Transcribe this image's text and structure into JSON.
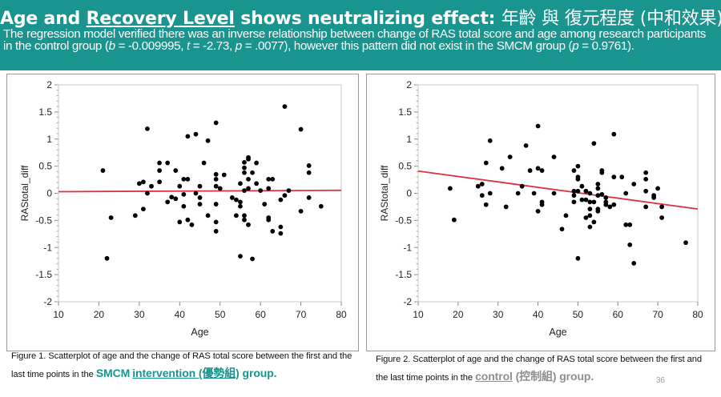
{
  "header": {
    "title_part1": "Age and ",
    "title_underlined": "Recovery Level",
    "title_part2": " shows neutralizing effect: ",
    "title_cjk": "年齡 與 復元程度 (中和效果)",
    "subtitle_1": "The regression model verified there was an inverse relationship between change of RAS total score and age among research participants in the control group (",
    "subtitle_b": "b",
    "subtitle_2": " = -0.009995, ",
    "subtitle_t": "t",
    "subtitle_3": " = -2.73, ",
    "subtitle_p": "p",
    "subtitle_4": " = .0077), however this pattern did not exist in the SMCM group (",
    "subtitle_p2": "p",
    "subtitle_5": " = 0.9761)."
  },
  "colors": {
    "header_bg": "#1a948f",
    "regression_line": "#e0303f",
    "point": "#000000",
    "highlight_teal": "#1a948f",
    "highlight_gray": "#8f8f8f"
  },
  "captions": {
    "fig1_text": "Figure 1. Scatterplot of age and the change of RAS total score between the first and the last time points in the ",
    "fig1_hl1": "SMCM",
    "fig1_hl2": "intervention (優勢組)",
    "fig1_hl3": " group.",
    "fig2_text": "Figure 2. Scatterplot of age and the change of RAS total score between the first and the last time points in the ",
    "fig2_hl1": "control",
    "fig2_hl2": " (控制組) group."
  },
  "page_number": "36",
  "chart_data": [
    {
      "type": "scatter",
      "title": "",
      "group": "SMCM intervention",
      "xlabel": "Age",
      "ylabel": "RAStotal_diff",
      "xlim": [
        10,
        80
      ],
      "ylim": [
        -2,
        2
      ],
      "x_ticks": [
        "10",
        "20",
        "30",
        "40",
        "50",
        "60",
        "70",
        "80"
      ],
      "y_ticks": [
        "2",
        "1.5",
        "1",
        "0.5",
        "0",
        "-0.5",
        "-1",
        "-1.5",
        "-2"
      ],
      "grid": false,
      "fit_line": {
        "x": [
          10,
          80
        ],
        "y": [
          0.03,
          0.055
        ]
      },
      "points": [
        [
          21,
          0.42
        ],
        [
          22,
          -1.2
        ],
        [
          23,
          -0.45
        ],
        [
          29,
          -0.41
        ],
        [
          30,
          0.18
        ],
        [
          31,
          0.21
        ],
        [
          31,
          -0.29
        ],
        [
          32,
          1.19
        ],
        [
          32,
          0.0
        ],
        [
          33,
          0.13
        ],
        [
          35,
          0.56
        ],
        [
          35,
          0.42
        ],
        [
          35,
          0.21
        ],
        [
          37,
          0.56
        ],
        [
          37,
          -0.16
        ],
        [
          38,
          -0.07
        ],
        [
          39,
          0.42
        ],
        [
          39,
          -0.1
        ],
        [
          40,
          0.13
        ],
        [
          40,
          -0.53
        ],
        [
          41,
          0.26
        ],
        [
          41,
          -0.02
        ],
        [
          41,
          -0.24
        ],
        [
          42,
          1.05
        ],
        [
          42,
          0.26
        ],
        [
          42,
          -0.49
        ],
        [
          43,
          -0.58
        ],
        [
          44,
          1.09
        ],
        [
          44,
          0.0
        ],
        [
          45,
          0.13
        ],
        [
          45,
          -0.08
        ],
        [
          45,
          -0.2
        ],
        [
          46,
          0.56
        ],
        [
          47,
          0.97
        ],
        [
          47,
          -0.41
        ],
        [
          49,
          1.3
        ],
        [
          49,
          0.35
        ],
        [
          49,
          0.26
        ],
        [
          49,
          0.13
        ],
        [
          49,
          -0.2
        ],
        [
          49,
          -0.53
        ],
        [
          49,
          -0.7
        ],
        [
          50,
          0.09
        ],
        [
          51,
          0.34
        ],
        [
          53,
          -0.08
        ],
        [
          54,
          -0.12
        ],
        [
          54,
          -0.41
        ],
        [
          55,
          0.18
        ],
        [
          55,
          -0.16
        ],
        [
          55,
          -0.24
        ],
        [
          55,
          -1.16
        ],
        [
          56,
          0.57
        ],
        [
          56,
          0.47
        ],
        [
          56,
          0.38
        ],
        [
          56,
          0.05
        ],
        [
          56,
          -0.41
        ],
        [
          56,
          -0.49
        ],
        [
          57,
          0.66
        ],
        [
          57,
          0.63
        ],
        [
          57,
          0.26
        ],
        [
          57,
          0.09
        ],
        [
          57,
          -0.58
        ],
        [
          58,
          0.38
        ],
        [
          58,
          -1.21
        ],
        [
          59,
          0.56
        ],
        [
          59,
          0.18
        ],
        [
          60,
          0.05
        ],
        [
          61,
          -0.2
        ],
        [
          62,
          0.26
        ],
        [
          62,
          0.09
        ],
        [
          62,
          -0.45
        ],
        [
          62,
          -0.49
        ],
        [
          63,
          0.26
        ],
        [
          63,
          -0.7
        ],
        [
          65,
          -0.12
        ],
        [
          65,
          -0.62
        ],
        [
          65,
          -0.74
        ],
        [
          66,
          1.6
        ],
        [
          66,
          -0.04
        ],
        [
          67,
          0.05
        ],
        [
          70,
          1.18
        ],
        [
          70,
          -0.33
        ],
        [
          72,
          0.51
        ],
        [
          72,
          0.38
        ],
        [
          72,
          -0.08
        ],
        [
          75,
          -0.24
        ]
      ]
    },
    {
      "type": "scatter",
      "title": "",
      "group": "control",
      "xlabel": "Age",
      "ylabel": "RAStotal_diff",
      "xlim": [
        10,
        80
      ],
      "ylim": [
        -2,
        2
      ],
      "x_ticks": [
        "10",
        "20",
        "30",
        "40",
        "50",
        "60",
        "70",
        "80"
      ],
      "y_ticks": [
        "2",
        "1.5",
        "1",
        "0.5",
        "0",
        "-0.5",
        "-1",
        "-1.5",
        "-2"
      ],
      "grid": false,
      "fit_line": {
        "x": [
          10,
          80
        ],
        "y": [
          0.41,
          -0.29
        ]
      },
      "points": [
        [
          18,
          0.09
        ],
        [
          19,
          -0.49
        ],
        [
          25,
          0.13
        ],
        [
          26,
          0.17
        ],
        [
          26,
          -0.04
        ],
        [
          27,
          0.56
        ],
        [
          27,
          -0.21
        ],
        [
          28,
          0.97
        ],
        [
          28,
          0.0
        ],
        [
          31,
          0.46
        ],
        [
          32,
          -0.25
        ],
        [
          33,
          0.67
        ],
        [
          35,
          0.0
        ],
        [
          36,
          0.13
        ],
        [
          37,
          0.88
        ],
        [
          38,
          0.42
        ],
        [
          39,
          0.0
        ],
        [
          40,
          1.24
        ],
        [
          40,
          0.46
        ],
        [
          40,
          -0.33
        ],
        [
          41,
          0.42
        ],
        [
          41,
          -0.16
        ],
        [
          41,
          -0.21
        ],
        [
          44,
          0.67
        ],
        [
          44,
          0.0
        ],
        [
          46,
          -0.66
        ],
        [
          47,
          -0.41
        ],
        [
          49,
          0.42
        ],
        [
          49,
          0.04
        ],
        [
          49,
          -0.04
        ],
        [
          49,
          -0.16
        ],
        [
          50,
          0.5
        ],
        [
          50,
          0.3
        ],
        [
          50,
          0.26
        ],
        [
          50,
          0.04
        ],
        [
          50,
          -1.2
        ],
        [
          51,
          0.13
        ],
        [
          51,
          -0.12
        ],
        [
          52,
          0.04
        ],
        [
          52,
          -0.12
        ],
        [
          52,
          -0.45
        ],
        [
          53,
          0.0
        ],
        [
          53,
          -0.16
        ],
        [
          53,
          -0.29
        ],
        [
          53,
          -0.41
        ],
        [
          53,
          -0.62
        ],
        [
          54,
          0.92
        ],
        [
          54,
          -0.16
        ],
        [
          54,
          -0.53
        ],
        [
          55,
          0.17
        ],
        [
          55,
          0.09
        ],
        [
          55,
          -0.04
        ],
        [
          55,
          -0.29
        ],
        [
          55,
          -0.33
        ],
        [
          56,
          0.42
        ],
        [
          56,
          0.38
        ],
        [
          56,
          -0.02
        ],
        [
          57,
          -0.08
        ],
        [
          57,
          -0.16
        ],
        [
          57,
          -0.21
        ],
        [
          58,
          -0.25
        ],
        [
          59,
          1.09
        ],
        [
          59,
          0.3
        ],
        [
          59,
          -0.21
        ],
        [
          61,
          0.3
        ],
        [
          62,
          0.0
        ],
        [
          62,
          -0.58
        ],
        [
          63,
          -0.58
        ],
        [
          63,
          -0.95
        ],
        [
          64,
          0.17
        ],
        [
          64,
          -1.29
        ],
        [
          67,
          0.38
        ],
        [
          67,
          0.26
        ],
        [
          67,
          0.04
        ],
        [
          67,
          -0.25
        ],
        [
          69,
          -0.04
        ],
        [
          69,
          -0.08
        ],
        [
          70,
          0.09
        ],
        [
          71,
          -0.25
        ],
        [
          71,
          -0.45
        ],
        [
          77,
          -0.91
        ]
      ]
    }
  ]
}
